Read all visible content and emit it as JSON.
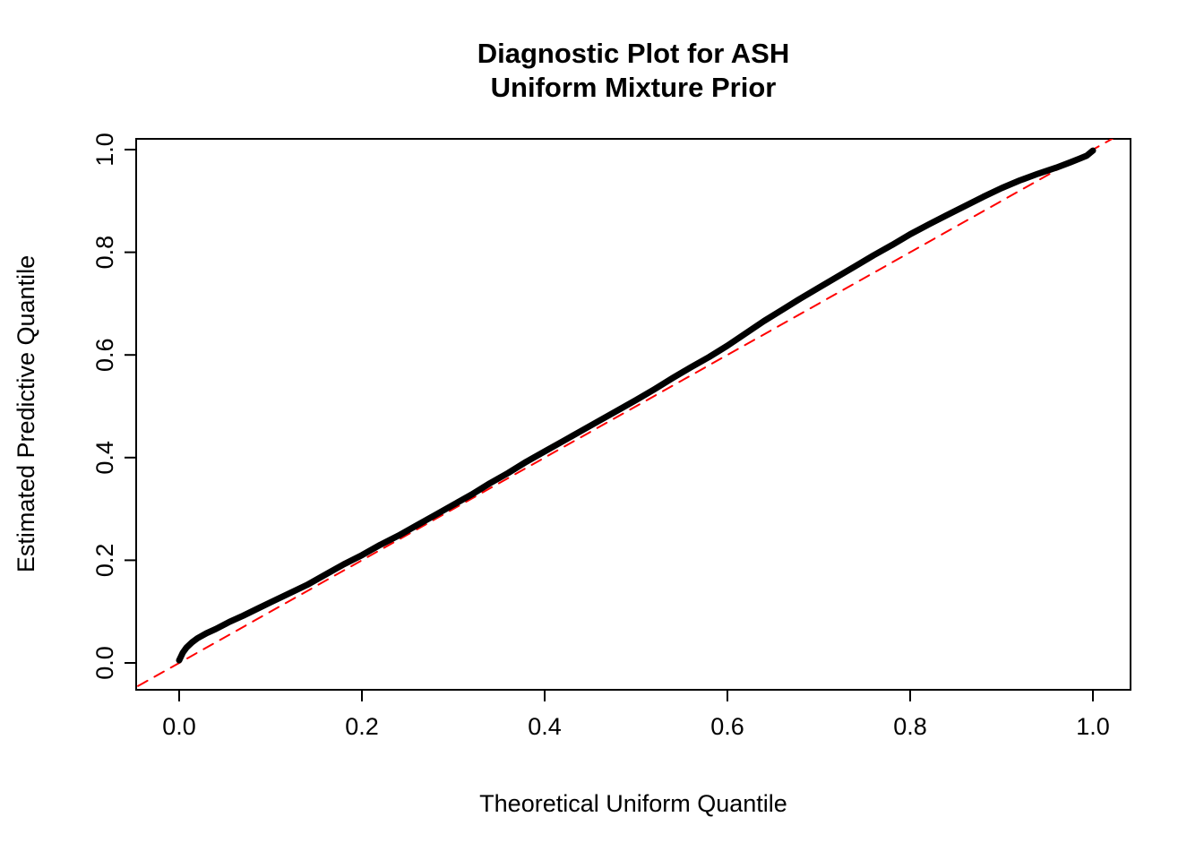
{
  "page": {
    "background_color": "#ffffff"
  },
  "chart_data": {
    "type": "line",
    "title": "Diagnostic Plot for ASH\nUniform Mixture Prior",
    "title_line1": "Diagnostic Plot for ASH",
    "title_line2": "Uniform Mixture Prior",
    "xlabel": "Theoretical Uniform Quantile",
    "ylabel": "Estimated Predictive Quantile",
    "xlim": [
      -0.045,
      1.045
    ],
    "ylim": [
      -0.045,
      1.045
    ],
    "grid": false,
    "legend": "none",
    "xtick_values": [
      0.0,
      0.2,
      0.4,
      0.6,
      0.8,
      1.0
    ],
    "xtick_labels": [
      "0.0",
      "0.2",
      "0.4",
      "0.6",
      "0.8",
      "1.0"
    ],
    "ytick_values": [
      0.0,
      0.2,
      0.4,
      0.6,
      0.8,
      1.0
    ],
    "ytick_labels": [
      "0.0",
      "0.2",
      "0.4",
      "0.6",
      "0.8",
      "1.0"
    ],
    "colors": {
      "curve": "#000000",
      "reference_line": "#ff0000",
      "axis": "#000000"
    },
    "series": [
      {
        "name": "estimated-vs-theoretical-quantiles",
        "color": "#000000",
        "linewidth": 7,
        "dash": "none",
        "x": [
          0.0,
          0.004,
          0.008,
          0.014,
          0.02,
          0.03,
          0.04,
          0.055,
          0.07,
          0.085,
          0.1,
          0.12,
          0.14,
          0.16,
          0.18,
          0.2,
          0.22,
          0.24,
          0.26,
          0.28,
          0.3,
          0.32,
          0.34,
          0.36,
          0.38,
          0.4,
          0.42,
          0.44,
          0.46,
          0.48,
          0.5,
          0.52,
          0.54,
          0.56,
          0.58,
          0.6,
          0.62,
          0.64,
          0.66,
          0.68,
          0.7,
          0.72,
          0.74,
          0.76,
          0.78,
          0.8,
          0.82,
          0.84,
          0.86,
          0.88,
          0.9,
          0.92,
          0.94,
          0.96,
          0.975,
          0.985,
          0.993,
          1.0
        ],
        "y": [
          0.005,
          0.02,
          0.03,
          0.04,
          0.048,
          0.058,
          0.066,
          0.08,
          0.092,
          0.105,
          0.118,
          0.135,
          0.152,
          0.172,
          0.192,
          0.21,
          0.23,
          0.248,
          0.268,
          0.288,
          0.308,
          0.328,
          0.35,
          0.37,
          0.392,
          0.412,
          0.432,
          0.452,
          0.472,
          0.492,
          0.512,
          0.533,
          0.555,
          0.576,
          0.596,
          0.618,
          0.642,
          0.666,
          0.688,
          0.71,
          0.731,
          0.752,
          0.773,
          0.794,
          0.814,
          0.835,
          0.854,
          0.872,
          0.89,
          0.908,
          0.925,
          0.94,
          0.953,
          0.965,
          0.975,
          0.982,
          0.988,
          0.998
        ]
      },
      {
        "name": "identity-reference-line",
        "color": "#ff0000",
        "linewidth": 2,
        "dash": "12 9",
        "x": [
          -0.045,
          1.045
        ],
        "y": [
          -0.045,
          1.045
        ]
      }
    ]
  }
}
